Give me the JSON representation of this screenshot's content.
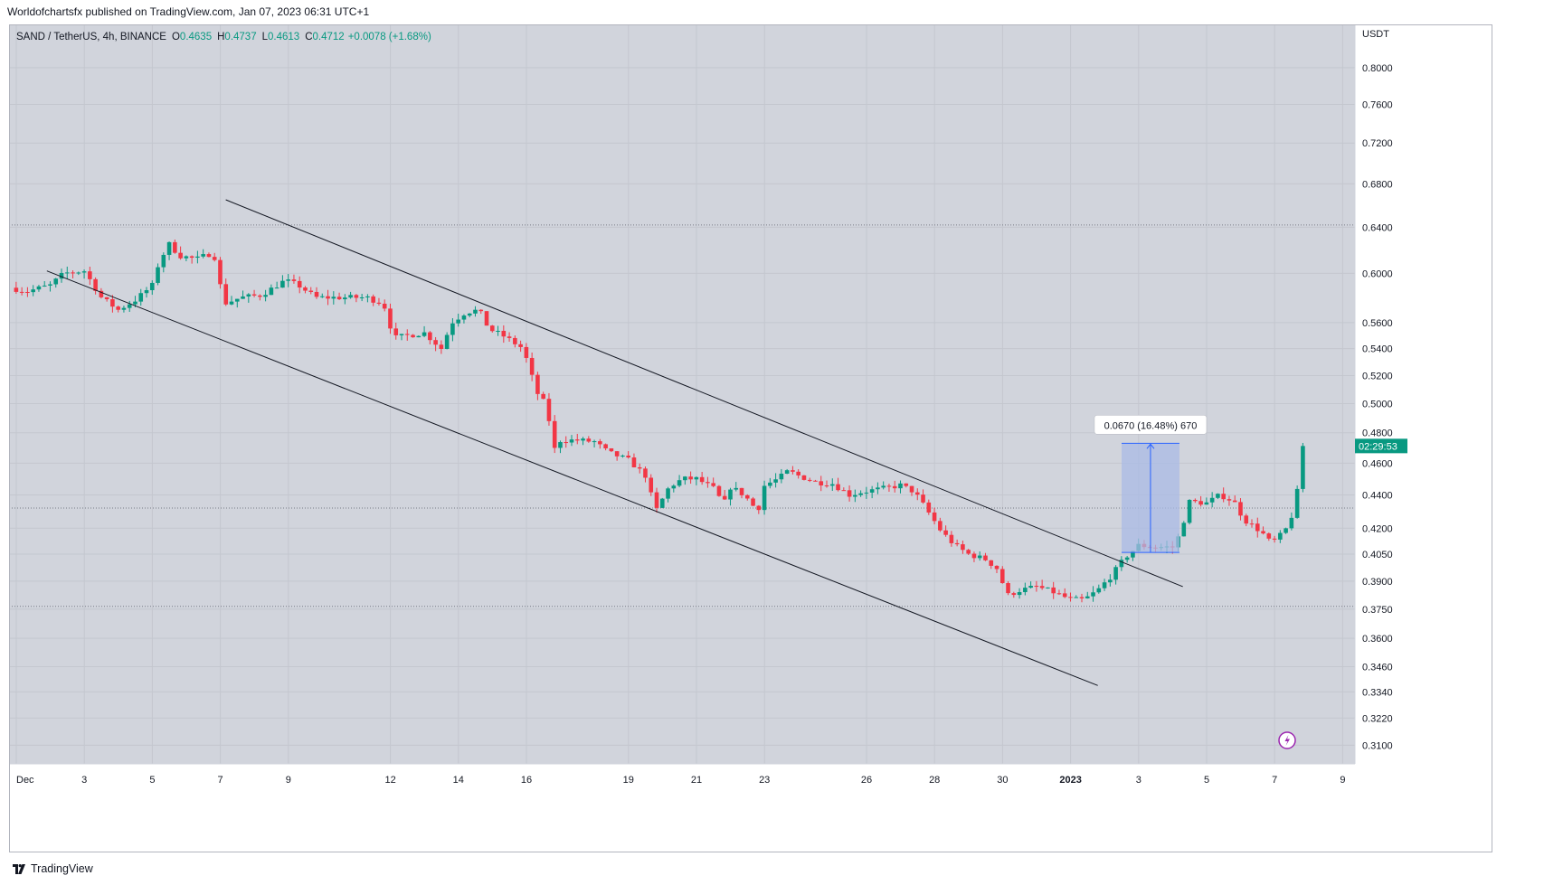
{
  "header": {
    "publisher_line": "Worldofchartsfx published on TradingView.com, Jan 07, 2023 06:31 UTC+1"
  },
  "legend": {
    "symbol": "SAND / TetherUS, 4h, BINANCE",
    "open_label": "O",
    "open": "0.4635",
    "high_label": "H",
    "high": "0.4737",
    "low_label": "L",
    "low": "0.4613",
    "close_label": "C",
    "close": "0.4712",
    "change": "+0.0078 (+1.68%)"
  },
  "price_axis": {
    "currency": "USDT",
    "countdown": "02:29:53"
  },
  "measure": {
    "label": "0.0670 (16.48%) 670"
  },
  "footer": {
    "brand": "TradingView"
  },
  "colors": {
    "background": "#d1d4dc",
    "up": "#089981",
    "down": "#f23645",
    "measure_fill": "#a9bbe6",
    "measure_line": "#2962ff",
    "trendline": "#131722"
  },
  "chart_data": {
    "type": "candlestick",
    "symbol": "SAND / TetherUS",
    "interval": "4h",
    "exchange": "BINANCE",
    "y_scale": "log",
    "ylim": [
      0.302,
      0.85
    ],
    "y_ticks": [
      0.31,
      0.322,
      0.334,
      0.346,
      0.36,
      0.375,
      0.39,
      0.405,
      0.42,
      0.44,
      0.46,
      0.48,
      0.5,
      0.52,
      0.54,
      0.56,
      0.6,
      0.64,
      0.68,
      0.72,
      0.76,
      0.8
    ],
    "y_tick_labels": [
      "0.3100",
      "0.3220",
      "0.3340",
      "0.3460",
      "0.3600",
      "0.3750",
      "0.3900",
      "0.4050",
      "0.4200",
      "0.4400",
      "0.4600",
      "0.4800",
      "0.5000",
      "0.5200",
      "0.5400",
      "0.5600",
      "0.6000",
      "0.6400",
      "0.6800",
      "0.7200",
      "0.7600",
      "0.8000"
    ],
    "x_ticks": [
      {
        "day": 1,
        "label": "Dec"
      },
      {
        "day": 3,
        "label": "3"
      },
      {
        "day": 5,
        "label": "5"
      },
      {
        "day": 7,
        "label": "7"
      },
      {
        "day": 9,
        "label": "9"
      },
      {
        "day": 12,
        "label": "12"
      },
      {
        "day": 14,
        "label": "14"
      },
      {
        "day": 16,
        "label": "16"
      },
      {
        "day": 19,
        "label": "19"
      },
      {
        "day": 21,
        "label": "21"
      },
      {
        "day": 23,
        "label": "23"
      },
      {
        "day": 26,
        "label": "26"
      },
      {
        "day": 28,
        "label": "28"
      },
      {
        "day": 30,
        "label": "30"
      },
      {
        "day": 32,
        "label": "2023"
      },
      {
        "day": 34,
        "label": "3"
      },
      {
        "day": 36,
        "label": "5"
      },
      {
        "day": 38,
        "label": "7"
      },
      {
        "day": 40,
        "label": "9"
      }
    ],
    "horizontal_lines": [
      0.642,
      0.432,
      0.3765
    ],
    "last_price": 0.4712,
    "trendlines": [
      {
        "from": [
          7.16,
          0.665
        ],
        "to": [
          35.3,
          0.387
        ]
      },
      {
        "from": [
          1.9,
          0.602
        ],
        "to": [
          32.8,
          0.337
        ]
      }
    ],
    "measurement": {
      "from_day": 33.5,
      "to_day": 35.2,
      "low": 0.406,
      "high": 0.473
    },
    "pivots": [
      [
        0.83,
        0.588
      ],
      [
        1.3,
        0.585
      ],
      [
        2.0,
        0.59
      ],
      [
        2.4,
        0.6
      ],
      [
        3.0,
        0.602
      ],
      [
        3.5,
        0.58
      ],
      [
        4.0,
        0.57
      ],
      [
        4.5,
        0.578
      ],
      [
        5.0,
        0.59
      ],
      [
        5.2,
        0.61
      ],
      [
        5.5,
        0.625
      ],
      [
        5.8,
        0.615
      ],
      [
        6.3,
        0.612
      ],
      [
        6.8,
        0.618
      ],
      [
        7.1,
        0.575
      ],
      [
        7.6,
        0.58
      ],
      [
        8.2,
        0.582
      ],
      [
        8.9,
        0.594
      ],
      [
        9.3,
        0.59
      ],
      [
        9.8,
        0.58
      ],
      [
        10.5,
        0.58
      ],
      [
        11.3,
        0.58
      ],
      [
        11.8,
        0.575
      ],
      [
        12.1,
        0.548
      ],
      [
        12.5,
        0.55
      ],
      [
        13.0,
        0.552
      ],
      [
        13.5,
        0.54
      ],
      [
        13.8,
        0.56
      ],
      [
        14.2,
        0.568
      ],
      [
        14.6,
        0.57
      ],
      [
        14.9,
        0.555
      ],
      [
        15.3,
        0.55
      ],
      [
        15.9,
        0.54
      ],
      [
        16.3,
        0.508
      ],
      [
        16.6,
        0.498
      ],
      [
        16.8,
        0.468
      ],
      [
        17.0,
        0.475
      ],
      [
        17.5,
        0.475
      ],
      [
        18.0,
        0.474
      ],
      [
        18.4,
        0.467
      ],
      [
        19.0,
        0.462
      ],
      [
        19.5,
        0.452
      ],
      [
        19.8,
        0.43
      ],
      [
        20.2,
        0.445
      ],
      [
        20.6,
        0.45
      ],
      [
        21.0,
        0.45
      ],
      [
        21.5,
        0.444
      ],
      [
        21.8,
        0.434
      ],
      [
        22.0,
        0.445
      ],
      [
        22.4,
        0.44
      ],
      [
        22.8,
        0.43
      ],
      [
        23.0,
        0.446
      ],
      [
        23.4,
        0.45
      ],
      [
        23.7,
        0.455
      ],
      [
        24.0,
        0.452
      ],
      [
        24.5,
        0.448
      ],
      [
        25.0,
        0.447
      ],
      [
        25.5,
        0.44
      ],
      [
        25.9,
        0.442
      ],
      [
        26.5,
        0.444
      ],
      [
        27.0,
        0.446
      ],
      [
        27.4,
        0.442
      ],
      [
        27.8,
        0.43
      ],
      [
        28.2,
        0.418
      ],
      [
        28.6,
        0.41
      ],
      [
        29.0,
        0.405
      ],
      [
        29.5,
        0.402
      ],
      [
        29.9,
        0.396
      ],
      [
        30.1,
        0.382
      ],
      [
        30.5,
        0.385
      ],
      [
        31.0,
        0.387
      ],
      [
        31.5,
        0.384
      ],
      [
        32.0,
        0.38
      ],
      [
        32.4,
        0.38
      ],
      [
        32.8,
        0.385
      ],
      [
        33.2,
        0.393
      ],
      [
        33.6,
        0.403
      ],
      [
        34.0,
        0.41
      ],
      [
        34.5,
        0.409
      ],
      [
        35.0,
        0.409
      ],
      [
        35.2,
        0.416
      ],
      [
        35.5,
        0.436
      ],
      [
        36.0,
        0.435
      ],
      [
        36.4,
        0.44
      ],
      [
        36.8,
        0.436
      ],
      [
        37.1,
        0.425
      ],
      [
        37.6,
        0.418
      ],
      [
        37.9,
        0.411
      ],
      [
        38.3,
        0.418
      ],
      [
        38.6,
        0.432
      ],
      [
        38.85,
        0.4712
      ]
    ]
  }
}
